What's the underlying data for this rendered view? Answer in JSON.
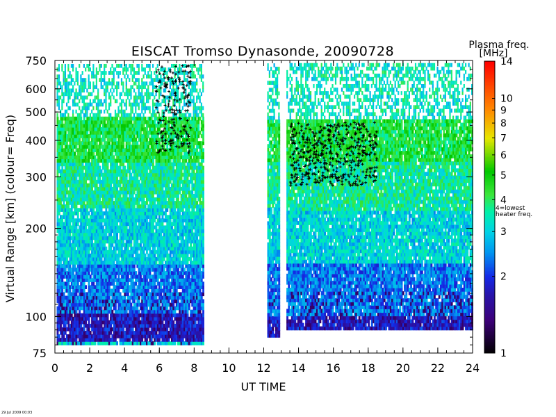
{
  "chart_data": {
    "type": "heatmap",
    "title": "EISCAT Tromso Dynasonde,  20090728",
    "xlabel": "UT TIME",
    "ylabel": "Virtual Range [km]   (colour= Freq)",
    "xlim": [
      0,
      24
    ],
    "ylim": [
      75,
      750
    ],
    "yscale": "log",
    "x_ticks": [
      0,
      2,
      4,
      6,
      8,
      10,
      12,
      14,
      16,
      18,
      20,
      22,
      24
    ],
    "y_ticks": [
      75,
      100,
      200,
      300,
      400,
      500,
      600,
      750
    ],
    "colorbar": {
      "label_line1": "Plasma freq.",
      "label_line2": "[MHz]",
      "scale": "log",
      "range": [
        1,
        14
      ],
      "ticks": [
        1,
        2,
        3,
        4,
        5,
        6,
        7,
        8,
        9,
        10,
        14
      ],
      "note": [
        "4=lowest",
        "heater freq."
      ]
    },
    "data_gaps": [
      [
        8.5,
        12.1
      ],
      [
        12.9,
        13.3
      ]
    ],
    "segments": [
      {
        "start": 0.1,
        "end": 8.5,
        "bottom_km": 80
      },
      {
        "start": 12.2,
        "end": 12.9,
        "bottom_km": 85
      },
      {
        "start": 13.3,
        "end": 24.0,
        "bottom_km": 90
      }
    ],
    "color_bands_by_height": [
      {
        "from_km": 80,
        "to_km": 100,
        "freq_mhz": 1.8
      },
      {
        "from_km": 100,
        "to_km": 150,
        "freq_mhz": 2.3
      },
      {
        "from_km": 150,
        "to_km": 230,
        "freq_mhz": 3.0
      },
      {
        "from_km": 230,
        "to_km": 330,
        "freq_mhz": 3.5
      },
      {
        "from_km": 330,
        "to_km": 470,
        "freq_mhz": 4.2
      },
      {
        "from_km": 470,
        "to_km": 720,
        "freq_mhz": 3.3
      }
    ],
    "marker_clusters": [
      {
        "t_start": 5.8,
        "t_end": 7.8,
        "range_km": [
          360,
          720
        ]
      },
      {
        "t_start": 13.5,
        "t_end": 18.5,
        "range_km": [
          280,
          460
        ]
      }
    ]
  },
  "timestamp": "29 Jul 2009 00:03"
}
